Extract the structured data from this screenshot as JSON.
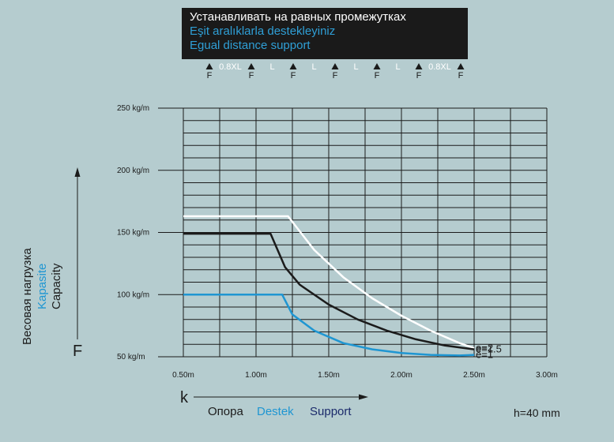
{
  "header": {
    "line1": "Устанавливать на равных промежутках",
    "line2": "Eşit aralıklarla destekleyiniz",
    "line3": "Egual distance support"
  },
  "support_diagram": {
    "support_label": "F",
    "span_labels": [
      "0.8XL",
      "L",
      "L",
      "L",
      "L",
      "0.8XL"
    ]
  },
  "axis": {
    "y_labels": [
      "Весовая нагрузка",
      "Kapasite",
      "Capacity"
    ],
    "y_symbol": "F",
    "x_symbol": "k",
    "x_labels": [
      "Опора",
      "Destek",
      "Support"
    ]
  },
  "note": "h=40 mm",
  "colors": {
    "background": "#b5cccf",
    "accent_blue": "#1f96d2",
    "dark": "#1b1b1b",
    "white_curve": "#ffffff"
  },
  "chart_data": {
    "type": "line",
    "x_unit": "m",
    "y_unit": "kg/m",
    "xlim": [
      0.5,
      3.0
    ],
    "ylim": [
      50,
      250
    ],
    "x_ticks": [
      0.5,
      1.0,
      1.5,
      2.0,
      2.5,
      3.0
    ],
    "x_tick_labels": [
      "0.50m",
      "1.00m",
      "1.50m",
      "2.00m",
      "2.50m",
      "3.00m"
    ],
    "y_ticks": [
      50,
      100,
      150,
      200,
      250
    ],
    "y_tick_labels": [
      "50 kg/m",
      "100 kg/m",
      "150 kg/m",
      "200 kg/m",
      "250 kg/m"
    ],
    "grid": true,
    "series": [
      {
        "name": "e=2",
        "color": "#ffffff",
        "points": [
          [
            0.5,
            163
          ],
          [
            1.22,
            163
          ],
          [
            1.4,
            136
          ],
          [
            1.6,
            114
          ],
          [
            1.8,
            97
          ],
          [
            2.0,
            83
          ],
          [
            2.2,
            71
          ],
          [
            2.4,
            61
          ],
          [
            2.5,
            57
          ]
        ]
      },
      {
        "name": "e=1.5",
        "color": "#1b1b1b",
        "points": [
          [
            0.5,
            149
          ],
          [
            1.1,
            149
          ],
          [
            1.2,
            122
          ],
          [
            1.3,
            108
          ],
          [
            1.5,
            92
          ],
          [
            1.7,
            80
          ],
          [
            1.9,
            71
          ],
          [
            2.1,
            64
          ],
          [
            2.3,
            59
          ],
          [
            2.5,
            56
          ]
        ]
      },
      {
        "name": "e=1",
        "color": "#1f96d2",
        "points": [
          [
            0.5,
            100
          ],
          [
            1.18,
            100
          ],
          [
            1.25,
            84
          ],
          [
            1.4,
            71
          ],
          [
            1.6,
            61
          ],
          [
            1.8,
            56
          ],
          [
            2.0,
            53
          ],
          [
            2.2,
            51.5
          ],
          [
            2.4,
            51
          ],
          [
            2.5,
            51.5
          ]
        ]
      }
    ]
  }
}
